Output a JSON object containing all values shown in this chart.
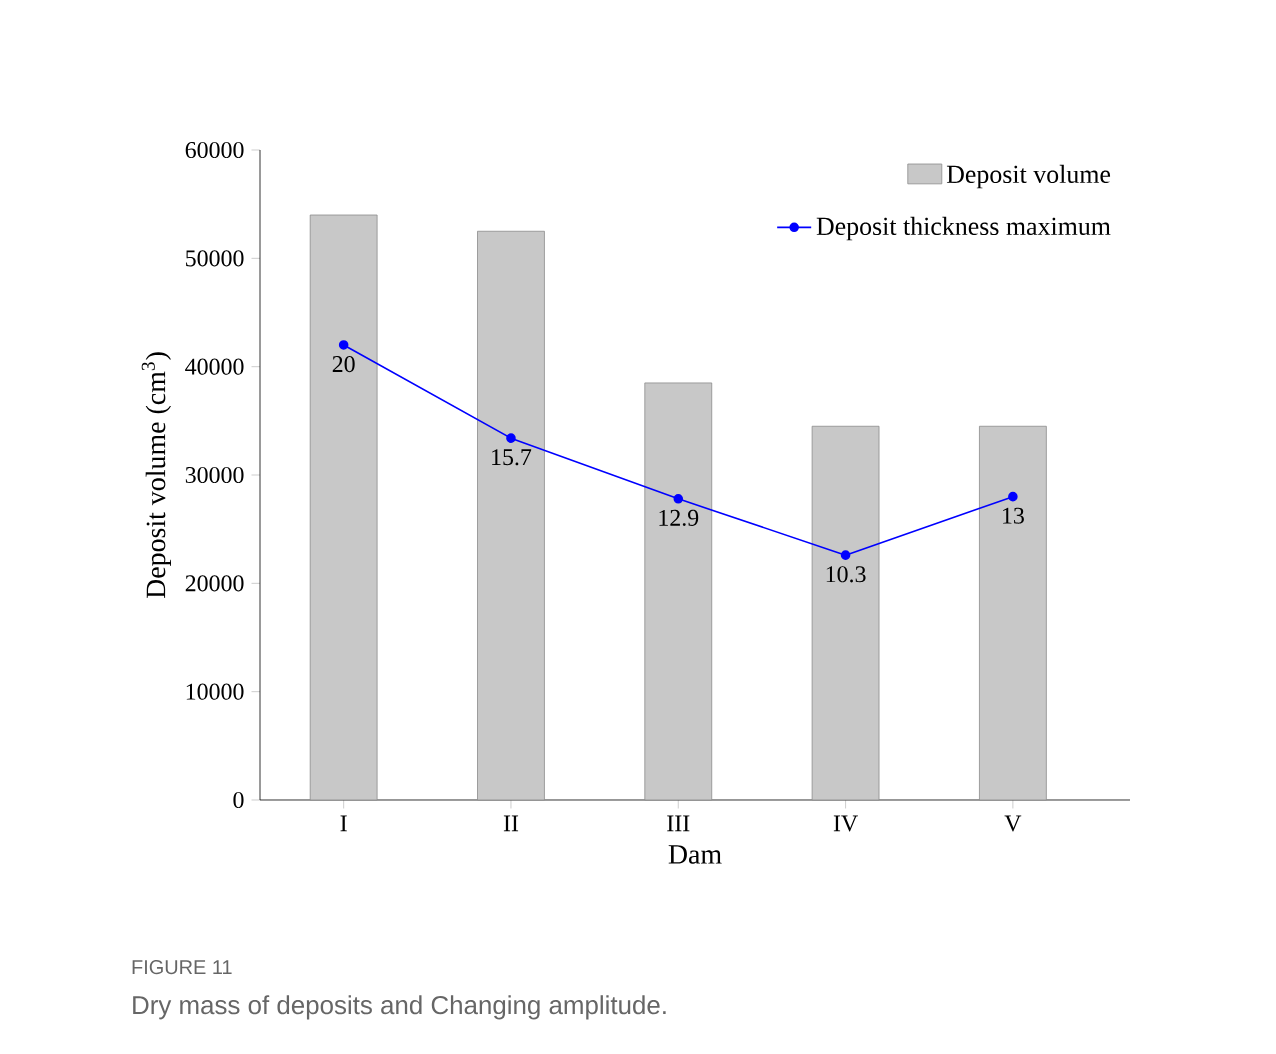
{
  "chart_data": {
    "type": "bar",
    "xlabel": "Dam",
    "ylabel": "Deposit volume (cm$^{3}$)",
    "categories": [
      "I",
      "II",
      "III",
      "IV",
      "V"
    ],
    "series": [
      {
        "name": "Deposit volume",
        "color": "#c8c8c8",
        "values": [
          54000,
          52500,
          38500,
          34500,
          34500
        ]
      },
      {
        "name": "Deposit thickness maximum",
        "type": "line",
        "axis": "y2",
        "color": "#0000ff",
        "marker": "circle",
        "values": [
          20,
          15.7,
          12.9,
          10.3,
          13
        ],
        "value_labels": [
          "20",
          "15.7",
          "12.9",
          "10.3",
          "13"
        ]
      }
    ],
    "ylim": [
      0,
      60000
    ],
    "yticks": [
      0,
      10000,
      20000,
      30000,
      40000,
      50000,
      60000
    ],
    "y2lim": [
      -1,
      29
    ],
    "legend": "top right",
    "grid": false,
    "annotations": [
      "FIGURE 11",
      "Dry mass of deposits and Changing amplitude."
    ]
  }
}
